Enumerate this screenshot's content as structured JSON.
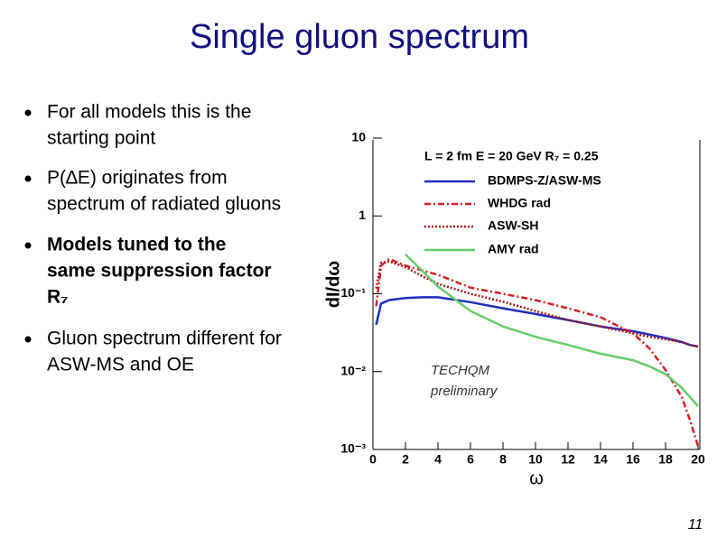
{
  "title": "Single gluon spectrum",
  "bullets": [
    {
      "lines": [
        "For all models this is the",
        "starting point"
      ],
      "bold": false
    },
    {
      "lines": [
        "P(∆E) originates from",
        "spectrum of radiated gluons"
      ],
      "bold": false
    },
    {
      "lines": [
        "Models tuned to the",
        "same suppression factor",
        "R₇"
      ],
      "bold": true
    },
    {
      "lines": [
        "Gluon spectrum different for",
        "ASW-MS and OE"
      ],
      "bold": false
    }
  ],
  "page_number": "11",
  "chart_data": {
    "type": "line",
    "xlabel": "ω",
    "ylabel": "dI/dω",
    "legend_title": "L = 2 fm E = 20 GeV R₇ = 0.25",
    "legend": "upper right",
    "annotations": [
      "TECHQM",
      "preliminary"
    ],
    "log_y": true,
    "xlim": [
      0,
      20
    ],
    "ylim": [
      0.001,
      10
    ],
    "xticks": [
      0,
      2,
      4,
      6,
      8,
      10,
      12,
      14,
      16,
      18,
      20
    ],
    "yticks": [
      {
        "value": 0.001,
        "label": "10⁻³"
      },
      {
        "value": 0.01,
        "label": "10⁻²"
      },
      {
        "value": 0.1,
        "label": "10⁻¹"
      },
      1,
      10
    ],
    "x": [
      0.2,
      0.5,
      1,
      2,
      3,
      4,
      6,
      8,
      10,
      12,
      14,
      16,
      17,
      18,
      19,
      19.5,
      20
    ],
    "series": [
      {
        "name": "BDMPS-Z/ASW-MS",
        "color": "#1f2fbf",
        "dash": "solid",
        "values": [
          0.04,
          0.075,
          0.083,
          0.088,
          0.09,
          0.09,
          0.078,
          0.065,
          0.055,
          0.046,
          0.038,
          0.033,
          0.03,
          0.027,
          0.024,
          0.022,
          0.021
        ]
      },
      {
        "name": "WHDG rad",
        "color": "#d42020",
        "dash": "dashdot",
        "values": [
          0.069,
          0.23,
          0.28,
          0.23,
          0.2,
          0.175,
          0.12,
          0.1,
          0.083,
          0.065,
          0.05,
          0.031,
          0.02,
          0.0105,
          0.0047,
          0.0024,
          0.0011
        ]
      },
      {
        "name": "ASW-SH",
        "color": "#b01818",
        "dash": "dotted",
        "values": [
          0.117,
          0.25,
          0.26,
          0.22,
          0.17,
          0.134,
          0.1,
          0.079,
          0.06,
          0.046,
          0.038,
          0.031,
          0.028,
          0.026,
          0.024,
          0.022,
          0.021
        ]
      },
      {
        "name": "AMY rad",
        "color": "#66cc66",
        "dash": "solid",
        "values": [
          null,
          null,
          null,
          0.32,
          0.2,
          0.124,
          0.06,
          0.038,
          0.028,
          0.022,
          0.017,
          0.014,
          0.0117,
          0.0093,
          0.0062,
          0.0047,
          0.0036
        ]
      }
    ]
  }
}
